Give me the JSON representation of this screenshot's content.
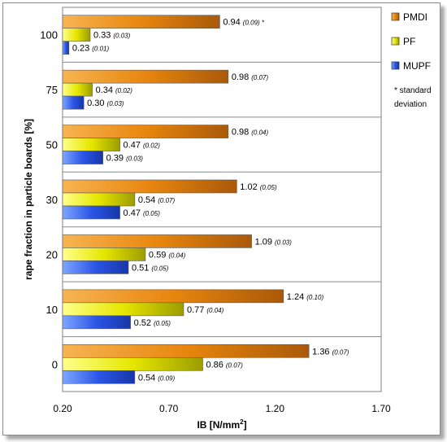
{
  "chart_data": {
    "type": "bar",
    "orientation": "horizontal",
    "categories": [
      "0",
      "10",
      "20",
      "30",
      "50",
      "75",
      "100"
    ],
    "series": [
      {
        "name": "PMDI",
        "color": "#e8860e",
        "values": [
          1.36,
          1.24,
          1.09,
          1.02,
          0.98,
          0.98,
          0.94
        ],
        "labels": [
          "1.36",
          "1.24",
          "1.09",
          "1.02",
          "0.98",
          "0.98",
          "0.94"
        ],
        "sd": [
          "(0.07)",
          "(0.10)",
          "(0.03)",
          "(0.05)",
          "(0.04)",
          "(0.07)",
          "(0.09) *"
        ]
      },
      {
        "name": "PF",
        "color": "#e6e600",
        "values": [
          0.86,
          0.77,
          0.59,
          0.54,
          0.47,
          0.34,
          0.33
        ],
        "labels": [
          "0.86",
          "0.77",
          "0.59",
          "0.54",
          "0.47",
          "0.34",
          "0.33"
        ],
        "sd": [
          "(0.07)",
          "(0.04)",
          "(0.04)",
          "(0.07)",
          "(0.02)",
          "(0.02)",
          "(0.03)"
        ]
      },
      {
        "name": "MUPF",
        "color": "#2b55e6",
        "values": [
          0.54,
          0.52,
          0.51,
          0.47,
          0.39,
          0.3,
          0.23
        ],
        "labels": [
          "0.54",
          "0.52",
          "0.51",
          "0.47",
          "0.39",
          "0.30",
          "0.23"
        ],
        "sd": [
          "(0.09)",
          "(0.05)",
          "(0.05)",
          "(0.05)",
          "(0.03)",
          "(0.03)",
          "(0.01)"
        ]
      }
    ],
    "xlabel": "IB [N/mm²]",
    "ylabel": "rape fraction in particle boards [%]",
    "xlim": [
      0.2,
      1.7
    ],
    "xticks": [
      "0.20",
      "0.70",
      "1.20",
      "1.70"
    ],
    "grid": "horizontal",
    "legend": "right",
    "legend_note": [
      "* standard",
      "deviation"
    ]
  }
}
